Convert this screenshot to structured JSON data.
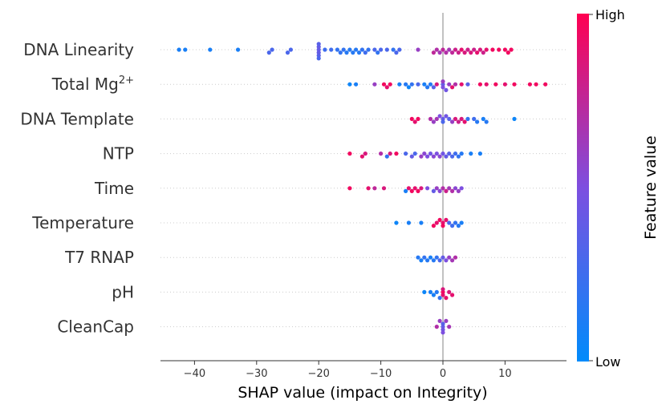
{
  "chart_data": {
    "type": "scatter",
    "subtype": "shap-beeswarm",
    "xlabel": "SHAP value (impact on Integrity)",
    "xlim": [
      -45,
      20
    ],
    "xticks": [
      -40,
      -30,
      -20,
      -10,
      0,
      10
    ],
    "xtick_labels": [
      "−40",
      "−30",
      "−20",
      "−10",
      "0",
      "10"
    ],
    "colorbar": {
      "title": "Feature value",
      "high_label": "High",
      "low_label": "Low",
      "low_color": "#008bfb",
      "high_color": "#ff0051"
    },
    "features": [
      {
        "name": "DNA Linearity",
        "superscript": "",
        "points": [
          [
            -42.5,
            0.1
          ],
          [
            -41.5,
            0.1
          ],
          [
            -37.5,
            0.1
          ],
          [
            -33,
            0.1
          ],
          [
            -28,
            0.3
          ],
          [
            -27.5,
            0.3
          ],
          [
            -25,
            0.3
          ],
          [
            -24.5,
            0.3
          ],
          [
            -20,
            0.4
          ],
          [
            -20,
            0.4
          ],
          [
            -20,
            0.4
          ],
          [
            -20,
            0.35
          ],
          [
            -20,
            0.35
          ],
          [
            -20,
            0.3
          ],
          [
            -19,
            0.25
          ],
          [
            -18,
            0.25
          ],
          [
            -17,
            0.2
          ],
          [
            -16.5,
            0.2
          ],
          [
            -16,
            0.2
          ],
          [
            -15.5,
            0.15
          ],
          [
            -15,
            0.15
          ],
          [
            -14.5,
            0.15
          ],
          [
            -14,
            0.15
          ],
          [
            -13.5,
            0.15
          ],
          [
            -13,
            0.2
          ],
          [
            -12.5,
            0.25
          ],
          [
            -12,
            0.2
          ],
          [
            -11,
            0.3
          ],
          [
            -10.5,
            0.2
          ],
          [
            -10,
            0.3
          ],
          [
            -9,
            0.3
          ],
          [
            -8,
            0.2
          ],
          [
            -7.5,
            0.3
          ],
          [
            -7,
            0.3
          ],
          [
            -4,
            0.6
          ],
          [
            -1.5,
            0.75
          ],
          [
            -1,
            0.7
          ],
          [
            -0.5,
            0.65
          ],
          [
            0,
            0.75
          ],
          [
            0.5,
            0.7
          ],
          [
            1,
            0.65
          ],
          [
            1.5,
            0.75
          ],
          [
            2,
            0.8
          ],
          [
            2.5,
            0.8
          ],
          [
            3,
            0.9
          ],
          [
            3.5,
            0.85
          ],
          [
            4,
            0.8
          ],
          [
            4.5,
            0.85
          ],
          [
            5,
            0.8
          ],
          [
            5.5,
            0.9
          ],
          [
            6,
            0.85
          ],
          [
            6.5,
            0.8
          ],
          [
            7,
            0.9
          ],
          [
            8,
            0.95
          ],
          [
            9,
            0.95
          ],
          [
            10,
            0.95
          ],
          [
            10.5,
            0.95
          ],
          [
            11,
            0.95
          ]
        ]
      },
      {
        "name": "Total Mg",
        "superscript": "2+",
        "points": [
          [
            -15,
            0.05
          ],
          [
            -14,
            0.1
          ],
          [
            -11,
            0.6
          ],
          [
            -9.5,
            0.95
          ],
          [
            -9,
            0.9
          ],
          [
            -8.5,
            0.95
          ],
          [
            -7,
            0.1
          ],
          [
            -6,
            0.15
          ],
          [
            -5.5,
            0.05
          ],
          [
            -5,
            0.2
          ],
          [
            -4,
            0.3
          ],
          [
            -3,
            0.1
          ],
          [
            -2.5,
            0.15
          ],
          [
            -2,
            0.15
          ],
          [
            -1.5,
            0.35
          ],
          [
            -1,
            0.85
          ],
          [
            0,
            0.4
          ],
          [
            0,
            0.5
          ],
          [
            0,
            0.6
          ],
          [
            0.5,
            0.45
          ],
          [
            1,
            0.6
          ],
          [
            1.5,
            0.9
          ],
          [
            2,
            0.7
          ],
          [
            3,
            0.9
          ],
          [
            4,
            0.35
          ],
          [
            6,
            0.95
          ],
          [
            7,
            0.9
          ],
          [
            8.5,
            0.95
          ],
          [
            10,
            0.9
          ],
          [
            11.5,
            0.95
          ],
          [
            14,
            0.95
          ],
          [
            15,
            0.95
          ],
          [
            16.5,
            0.95
          ]
        ]
      },
      {
        "name": "DNA Template",
        "superscript": "",
        "points": [
          [
            -5,
            0.95
          ],
          [
            -4.5,
            0.9
          ],
          [
            -4,
            0.95
          ],
          [
            -2,
            0.7
          ],
          [
            -1.5,
            0.6
          ],
          [
            -1,
            0.65
          ],
          [
            -0.5,
            0.5
          ],
          [
            0,
            0.4
          ],
          [
            0,
            0.3
          ],
          [
            0.5,
            0.45
          ],
          [
            1,
            0.35
          ],
          [
            1.5,
            0.6
          ],
          [
            2,
            0.85
          ],
          [
            2.5,
            0.8
          ],
          [
            3,
            0.85
          ],
          [
            3.5,
            0.9
          ],
          [
            4,
            0.2
          ],
          [
            5,
            0.25
          ],
          [
            5.5,
            0.15
          ],
          [
            6.5,
            0.1
          ],
          [
            7,
            0.15
          ],
          [
            11.5,
            0.05
          ]
        ]
      },
      {
        "name": "NTP",
        "superscript": "",
        "points": [
          [
            -15,
            0.95
          ],
          [
            -13,
            0.9
          ],
          [
            -12.5,
            0.85
          ],
          [
            -10,
            0.7
          ],
          [
            -9,
            0.2
          ],
          [
            -8.5,
            0.85
          ],
          [
            -7.5,
            0.95
          ],
          [
            -6,
            0.3
          ],
          [
            -5,
            0.4
          ],
          [
            -4.5,
            0.3
          ],
          [
            -3.5,
            0.6
          ],
          [
            -3,
            0.55
          ],
          [
            -2.5,
            0.5
          ],
          [
            -2,
            0.45
          ],
          [
            -1.5,
            0.55
          ],
          [
            -1,
            0.5
          ],
          [
            -0.5,
            0.55
          ],
          [
            0,
            0.45
          ],
          [
            0.5,
            0.4
          ],
          [
            1,
            0.35
          ],
          [
            1.5,
            0.3
          ],
          [
            2,
            0.25
          ],
          [
            2.5,
            0.2
          ],
          [
            3,
            0.15
          ],
          [
            4.5,
            0.1
          ],
          [
            6,
            0.1
          ]
        ]
      },
      {
        "name": "Time",
        "superscript": "",
        "points": [
          [
            -15,
            0.95
          ],
          [
            -12,
            0.9
          ],
          [
            -11,
            0.75
          ],
          [
            -9.5,
            0.85
          ],
          [
            -6,
            0.1
          ],
          [
            -5.5,
            0.9
          ],
          [
            -5,
            0.95
          ],
          [
            -4.5,
            0.9
          ],
          [
            -4,
            0.95
          ],
          [
            -3.5,
            0.85
          ],
          [
            -2.5,
            0.5
          ],
          [
            -1.5,
            0.4
          ],
          [
            -1,
            0.6
          ],
          [
            -0.5,
            0.55
          ],
          [
            0,
            0.7
          ],
          [
            0.5,
            0.8
          ],
          [
            1,
            0.65
          ],
          [
            1.5,
            0.7
          ],
          [
            2,
            0.55
          ],
          [
            2.5,
            0.6
          ],
          [
            3,
            0.5
          ]
        ]
      },
      {
        "name": "Temperature",
        "superscript": "",
        "points": [
          [
            -7.5,
            0.05
          ],
          [
            -5.5,
            0.1
          ],
          [
            -3.5,
            0.1
          ],
          [
            -1.5,
            0.95
          ],
          [
            -1,
            0.9
          ],
          [
            -0.5,
            0.95
          ],
          [
            0,
            0.9
          ],
          [
            0,
            0.95
          ],
          [
            0.5,
            0.9
          ],
          [
            1,
            0.3
          ],
          [
            1.5,
            0.25
          ],
          [
            2,
            0.2
          ],
          [
            2.5,
            0.15
          ],
          [
            3,
            0.1
          ]
        ]
      },
      {
        "name": "T7 RNAP",
        "superscript": "",
        "points": [
          [
            -4,
            0.15
          ],
          [
            -3.5,
            0.1
          ],
          [
            -3,
            0.2
          ],
          [
            -2.5,
            0.15
          ],
          [
            -2,
            0.1
          ],
          [
            -1.5,
            0.15
          ],
          [
            -1,
            0.2
          ],
          [
            -0.5,
            0.3
          ],
          [
            0,
            0.4
          ],
          [
            0.5,
            0.5
          ],
          [
            1,
            0.6
          ],
          [
            1.5,
            0.65
          ],
          [
            2,
            0.7
          ]
        ]
      },
      {
        "name": "pH",
        "superscript": "",
        "points": [
          [
            -3,
            0.05
          ],
          [
            -2,
            0.1
          ],
          [
            -1.5,
            0.1
          ],
          [
            -1,
            0.15
          ],
          [
            -0.5,
            0.2
          ],
          [
            0,
            0.95
          ],
          [
            0,
            0.9
          ],
          [
            0,
            0.85
          ],
          [
            0.5,
            0.9
          ],
          [
            1,
            0.85
          ],
          [
            1.5,
            0.9
          ]
        ]
      },
      {
        "name": "CleanCap",
        "superscript": "",
        "points": [
          [
            -1,
            0.7
          ],
          [
            -0.5,
            0.6
          ],
          [
            0,
            0.4
          ],
          [
            0,
            0.45
          ],
          [
            0,
            0.35
          ],
          [
            0,
            0.5
          ],
          [
            0.5,
            0.6
          ],
          [
            1,
            0.65
          ]
        ]
      }
    ]
  }
}
